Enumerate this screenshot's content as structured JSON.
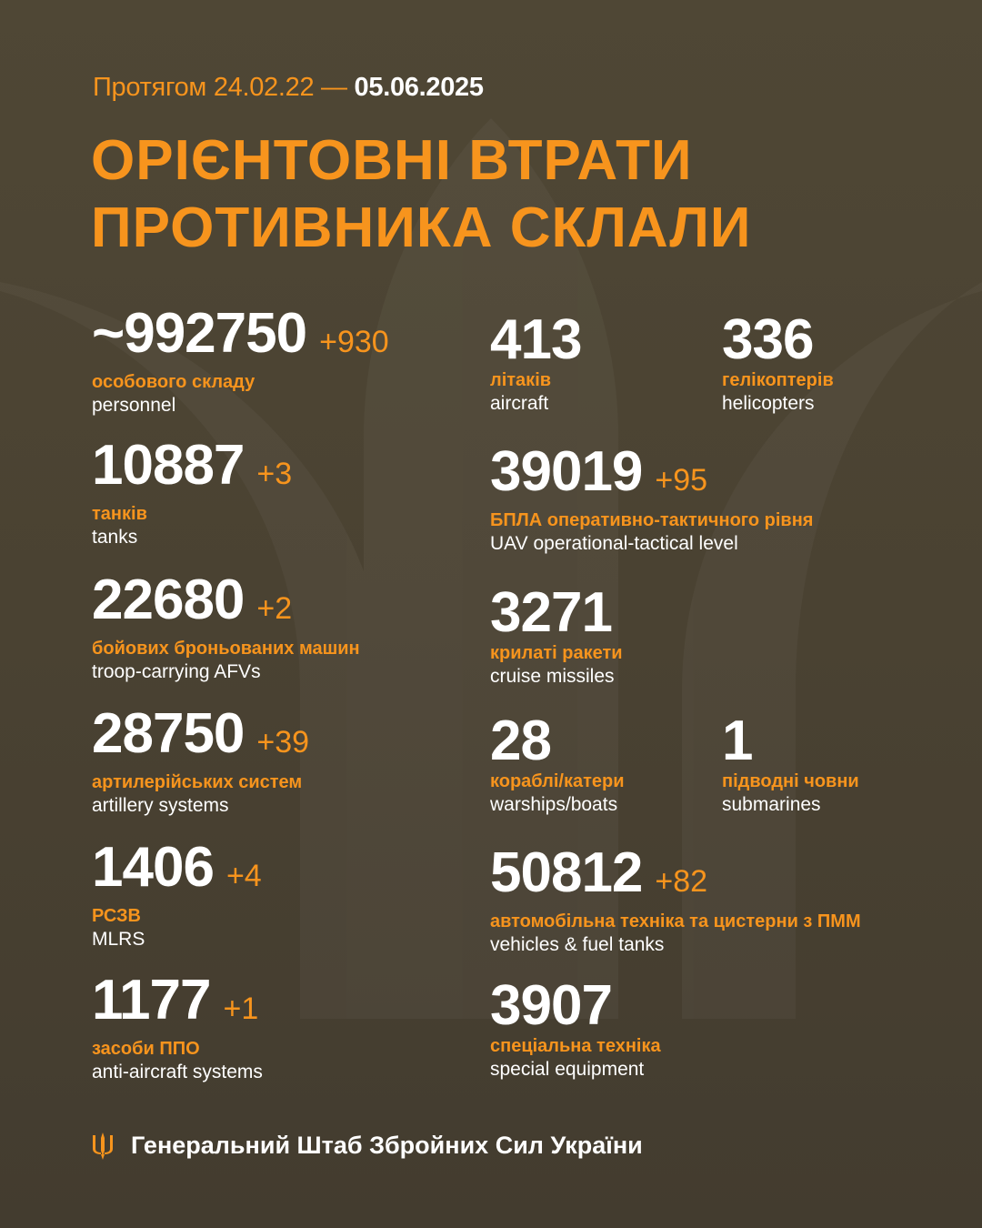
{
  "header": {
    "period_prefix": "Протягом 24.02.22 —",
    "period_date": "05.06.2025",
    "title_line1": "ОРІЄНТОВНІ ВТРАТИ",
    "title_line2": "ПРОТИВНИКА СКЛАЛИ"
  },
  "colors": {
    "accent": "#f7941d",
    "background": "#4a4232",
    "text": "#ffffff"
  },
  "stats": [
    {
      "value": "~992750",
      "delta": "+930",
      "ua": "особового складу",
      "en": "personnel"
    },
    {
      "value": "10887",
      "delta": "+3",
      "ua": "танків",
      "en": "tanks"
    },
    {
      "value": "22680",
      "delta": "+2",
      "ua": "бойових броньованих машин",
      "en": "troop-carrying AFVs"
    },
    {
      "value": "28750",
      "delta": "+39",
      "ua": "артилерійських систем",
      "en": "artillery systems"
    },
    {
      "value": "1406",
      "delta": "+4",
      "ua": "РСЗВ",
      "en": "MLRS"
    },
    {
      "value": "1177",
      "delta": "+1",
      "ua": "засоби ППО",
      "en": "anti-aircraft systems"
    },
    {
      "value": "413",
      "delta": "",
      "ua": "літаків",
      "en": "aircraft"
    },
    {
      "value": "336",
      "delta": "",
      "ua": "гелікоптерів",
      "en": "helicopters"
    },
    {
      "value": "39019",
      "delta": "+95",
      "ua": "БПЛА оперативно-тактичного рівня",
      "en": "UAV operational-tactical level"
    },
    {
      "value": "3271",
      "delta": "",
      "ua": "крилаті ракети",
      "en": "cruise missiles"
    },
    {
      "value": "28",
      "delta": "",
      "ua": "кораблі/катери",
      "en": "warships/boats"
    },
    {
      "value": "1",
      "delta": "",
      "ua": "підводні човни",
      "en": "submarines"
    },
    {
      "value": "50812",
      "delta": "+82",
      "ua": "автомобільна техніка та цистерни з ПММ",
      "en": "vehicles & fuel tanks"
    },
    {
      "value": "3907",
      "delta": "",
      "ua": "спеціальна техніка",
      "en": "special equipment"
    }
  ],
  "footer": {
    "icon": "trident-icon",
    "org": "Генеральний Штаб Збройних Сил України"
  }
}
